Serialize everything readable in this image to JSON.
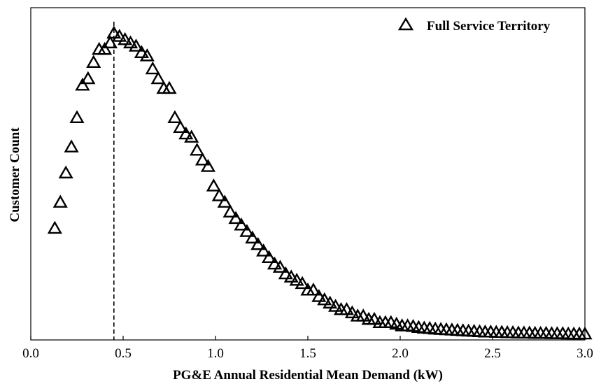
{
  "chart_data": {
    "type": "scatter",
    "title": "",
    "xlabel": "PG&E Annual Residential Mean Demand (kW)",
    "ylabel": "Customer Count",
    "xlim": [
      0.0,
      3.0
    ],
    "ylim": [
      0,
      100
    ],
    "x_ticks": [
      "0.0",
      "0.5",
      "1.0",
      "1.5",
      "2.0",
      "2.5",
      "3.0"
    ],
    "y_ticks": [],
    "grid": false,
    "legend_position": "top-right",
    "marker": "open-triangle",
    "reference_line": {
      "x": 0.45,
      "style": "dashed"
    },
    "series": [
      {
        "name": "Full Service Territory",
        "points": [
          [
            0.13,
            33
          ],
          [
            0.16,
            41
          ],
          [
            0.19,
            50
          ],
          [
            0.22,
            58
          ],
          [
            0.25,
            67
          ],
          [
            0.28,
            77
          ],
          [
            0.31,
            79
          ],
          [
            0.34,
            84
          ],
          [
            0.37,
            88
          ],
          [
            0.4,
            88
          ],
          [
            0.43,
            90
          ],
          [
            0.45,
            93
          ],
          [
            0.48,
            92
          ],
          [
            0.51,
            91
          ],
          [
            0.54,
            90
          ],
          [
            0.57,
            89
          ],
          [
            0.6,
            87
          ],
          [
            0.63,
            86
          ],
          [
            0.66,
            82
          ],
          [
            0.69,
            79
          ],
          [
            0.72,
            76
          ],
          [
            0.75,
            76
          ],
          [
            0.78,
            67
          ],
          [
            0.81,
            64
          ],
          [
            0.84,
            62
          ],
          [
            0.87,
            61
          ],
          [
            0.9,
            57
          ],
          [
            0.93,
            54
          ],
          [
            0.96,
            52
          ],
          [
            0.99,
            46
          ],
          [
            1.02,
            43
          ],
          [
            1.05,
            41
          ],
          [
            1.08,
            38
          ],
          [
            1.11,
            36
          ],
          [
            1.14,
            34
          ],
          [
            1.17,
            32
          ],
          [
            1.2,
            30
          ],
          [
            1.23,
            28
          ],
          [
            1.26,
            26
          ],
          [
            1.29,
            24
          ],
          [
            1.32,
            22
          ],
          [
            1.35,
            21
          ],
          [
            1.38,
            19
          ],
          [
            1.41,
            18
          ],
          [
            1.44,
            17
          ],
          [
            1.47,
            16
          ],
          [
            1.5,
            14
          ],
          [
            1.53,
            14
          ],
          [
            1.56,
            12
          ],
          [
            1.59,
            11
          ],
          [
            1.62,
            10
          ],
          [
            1.65,
            9
          ],
          [
            1.68,
            8
          ],
          [
            1.71,
            8
          ],
          [
            1.74,
            7
          ],
          [
            1.77,
            6
          ],
          [
            1.8,
            6
          ],
          [
            1.83,
            5
          ],
          [
            1.86,
            5
          ],
          [
            1.89,
            4
          ],
          [
            1.92,
            4
          ],
          [
            1.95,
            4
          ],
          [
            1.98,
            3.5
          ],
          [
            2.01,
            3
          ],
          [
            2.04,
            3
          ],
          [
            2.07,
            2.8
          ],
          [
            2.1,
            2.5
          ],
          [
            2.13,
            2.3
          ],
          [
            2.16,
            2.2
          ],
          [
            2.19,
            2
          ],
          [
            2.22,
            1.9
          ],
          [
            2.25,
            1.8
          ],
          [
            2.28,
            1.7
          ],
          [
            2.31,
            1.6
          ],
          [
            2.34,
            1.5
          ],
          [
            2.37,
            1.4
          ],
          [
            2.4,
            1.3
          ],
          [
            2.43,
            1.2
          ],
          [
            2.46,
            1.1
          ],
          [
            2.49,
            1.1
          ],
          [
            2.52,
            1
          ],
          [
            2.55,
            1
          ],
          [
            2.58,
            0.9
          ],
          [
            2.61,
            0.9
          ],
          [
            2.64,
            0.8
          ],
          [
            2.67,
            0.8
          ],
          [
            2.7,
            0.8
          ],
          [
            2.73,
            0.7
          ],
          [
            2.76,
            0.7
          ],
          [
            2.79,
            0.7
          ],
          [
            2.82,
            0.6
          ],
          [
            2.85,
            0.6
          ],
          [
            2.88,
            0.6
          ],
          [
            2.91,
            0.5
          ],
          [
            2.94,
            0.5
          ],
          [
            2.97,
            0.5
          ],
          [
            3.0,
            0.5
          ]
        ]
      }
    ]
  }
}
